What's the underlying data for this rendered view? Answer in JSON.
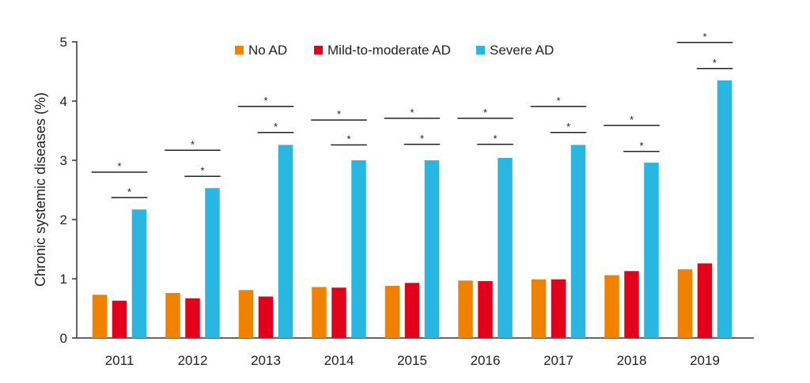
{
  "chart_data": {
    "type": "bar",
    "title": "",
    "xlabel": "",
    "ylabel": "Chronic systemic diseases (%)",
    "ylim": [
      0,
      5
    ],
    "yticks": [
      0,
      1,
      2,
      3,
      4,
      5
    ],
    "grid": false,
    "legend_position": "top",
    "categories": [
      "2011",
      "2012",
      "2013",
      "2014",
      "2015",
      "2016",
      "2017",
      "2018",
      "2019"
    ],
    "series": [
      {
        "name": "No AD",
        "color": "#f08200",
        "values": [
          0.73,
          0.76,
          0.81,
          0.86,
          0.88,
          0.97,
          0.99,
          1.06,
          1.16
        ]
      },
      {
        "name": "Mild-to-moderate AD",
        "color": "#e2001a",
        "values": [
          0.63,
          0.67,
          0.7,
          0.85,
          0.93,
          0.96,
          0.99,
          1.13,
          1.26
        ]
      },
      {
        "name": "Severe AD",
        "color": "#29b6e0",
        "values": [
          2.17,
          2.53,
          3.26,
          3.0,
          3.0,
          3.04,
          3.26,
          2.96,
          4.35
        ]
      }
    ],
    "significance_marker": "*",
    "significance_brackets": [
      {
        "category": "2011",
        "from_series": "No AD",
        "to_series": "Severe AD",
        "level": 2.8
      },
      {
        "category": "2011",
        "from_series": "Mild-to-moderate AD",
        "to_series": "Severe AD",
        "level": 2.37
      },
      {
        "category": "2012",
        "from_series": "No AD",
        "to_series": "Severe AD",
        "level": 3.17
      },
      {
        "category": "2012",
        "from_series": "Mild-to-moderate AD",
        "to_series": "Severe AD",
        "level": 2.73
      },
      {
        "category": "2013",
        "from_series": "No AD",
        "to_series": "Severe AD",
        "level": 3.91
      },
      {
        "category": "2013",
        "from_series": "Mild-to-moderate AD",
        "to_series": "Severe AD",
        "level": 3.47
      },
      {
        "category": "2014",
        "from_series": "No AD",
        "to_series": "Severe AD",
        "level": 3.68
      },
      {
        "category": "2014",
        "from_series": "Mild-to-moderate AD",
        "to_series": "Severe AD",
        "level": 3.26
      },
      {
        "category": "2015",
        "from_series": "No AD",
        "to_series": "Severe AD",
        "level": 3.71
      },
      {
        "category": "2015",
        "from_series": "Mild-to-moderate AD",
        "to_series": "Severe AD",
        "level": 3.27
      },
      {
        "category": "2016",
        "from_series": "No AD",
        "to_series": "Severe AD",
        "level": 3.71
      },
      {
        "category": "2016",
        "from_series": "Mild-to-moderate AD",
        "to_series": "Severe AD",
        "level": 3.27
      },
      {
        "category": "2017",
        "from_series": "No AD",
        "to_series": "Severe AD",
        "level": 3.91
      },
      {
        "category": "2017",
        "from_series": "Mild-to-moderate AD",
        "to_series": "Severe AD",
        "level": 3.47
      },
      {
        "category": "2018",
        "from_series": "No AD",
        "to_series": "Severe AD",
        "level": 3.59
      },
      {
        "category": "2018",
        "from_series": "Mild-to-moderate AD",
        "to_series": "Severe AD",
        "level": 3.15
      },
      {
        "category": "2019",
        "from_series": "No AD",
        "to_series": "Severe AD",
        "level": 4.99
      },
      {
        "category": "2019",
        "from_series": "Mild-to-moderate AD",
        "to_series": "Severe AD",
        "level": 4.55
      }
    ]
  }
}
